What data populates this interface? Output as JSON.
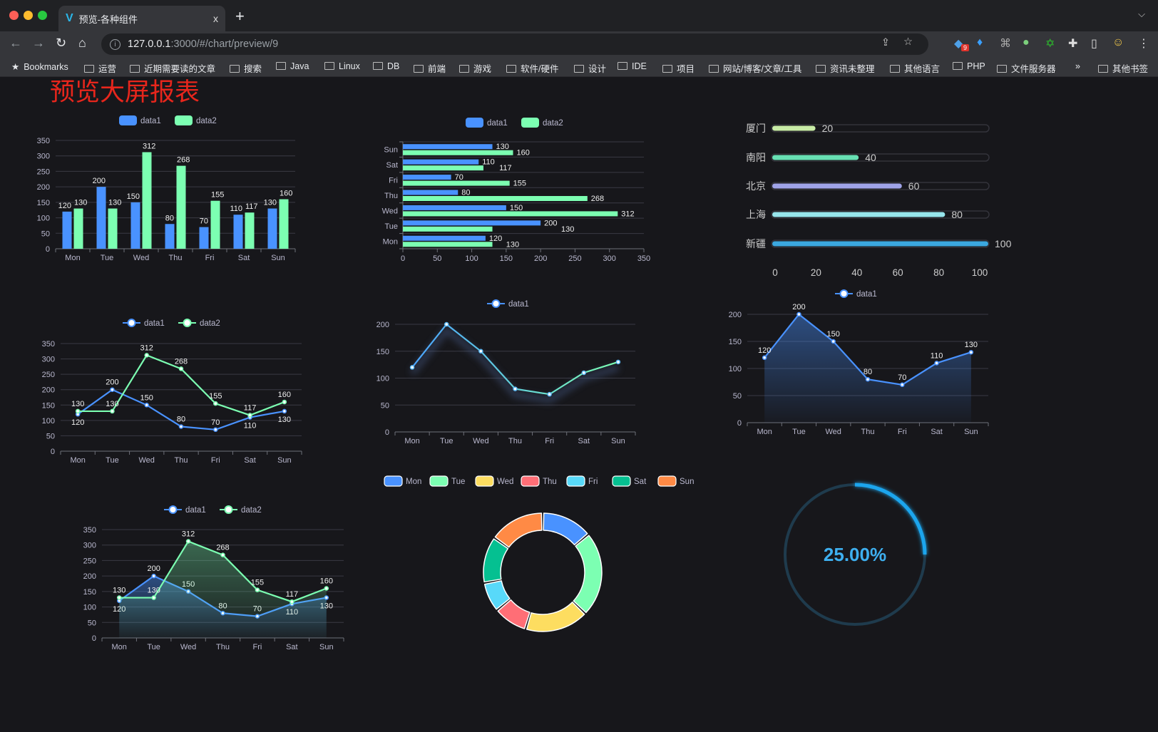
{
  "browser": {
    "tab_title": "预览-各种组件",
    "tab_close": "x",
    "new_tab": "+",
    "url_host": "127.0.0.1",
    "url_path": ":3000/#/chart/preview/9",
    "extension_badge": "9",
    "bookmarks": [
      "Bookmarks",
      "运营",
      "近期需要读的文章",
      "搜索",
      "Java",
      "Linux",
      "DB",
      "前端",
      "游戏",
      "软件/硬件",
      "设计",
      "IDE",
      "项目",
      "网站/博客/文章/工具",
      "资讯未整理",
      "其他语言",
      "PHP",
      "文件服务器"
    ],
    "more_bookmarks": "»",
    "other_bookmarks": "其他书签"
  },
  "page": {
    "title": "预览大屏报表"
  },
  "colors": {
    "data1": "#4992ff",
    "data2": "#7cffb2",
    "title": "#e8261c",
    "background": "#17171b"
  },
  "chart_data": [
    {
      "type": "bar",
      "categories": [
        "Mon",
        "Tue",
        "Wed",
        "Thu",
        "Fri",
        "Sat",
        "Sun"
      ],
      "yticks": [
        0,
        50,
        100,
        150,
        200,
        250,
        300,
        350
      ],
      "ylim": [
        0,
        350
      ],
      "legend": "top",
      "grid": true,
      "series": [
        {
          "name": "data1",
          "color": "#4992ff",
          "values": [
            120,
            200,
            150,
            80,
            70,
            110,
            130
          ]
        },
        {
          "name": "data2",
          "color": "#7cffb2",
          "values": [
            130,
            130,
            312,
            268,
            155,
            117,
            160
          ]
        }
      ]
    },
    {
      "type": "bar",
      "orientation": "horizontal",
      "categories": [
        "Mon",
        "Tue",
        "Wed",
        "Thu",
        "Fri",
        "Sat",
        "Sun"
      ],
      "xticks": [
        0,
        50,
        100,
        150,
        200,
        250,
        300,
        350
      ],
      "xlim": [
        0,
        350
      ],
      "legend": "top",
      "grid": true,
      "series": [
        {
          "name": "data1",
          "color": "#4992ff",
          "values": [
            120,
            200,
            150,
            80,
            70,
            110,
            130
          ]
        },
        {
          "name": "data2",
          "color": "#7cffb2",
          "values": [
            130,
            130,
            312,
            268,
            155,
            117,
            160
          ]
        }
      ]
    },
    {
      "type": "bar",
      "orientation": "horizontal",
      "style": "progress",
      "categories": [
        "厦门",
        "南阳",
        "北京",
        "上海",
        "新疆"
      ],
      "values": [
        20,
        40,
        60,
        80,
        100
      ],
      "colors": [
        "#c8eca6",
        "#67e0b3",
        "#9fa3e8",
        "#97e6ec",
        "#3ba8e0"
      ],
      "xticks": [
        0,
        20,
        40,
        60,
        80,
        100
      ],
      "xlim": [
        0,
        100
      ]
    },
    {
      "type": "line",
      "categories": [
        "Mon",
        "Tue",
        "Wed",
        "Thu",
        "Fri",
        "Sat",
        "Sun"
      ],
      "yticks": [
        0,
        50,
        100,
        150,
        200,
        250,
        300,
        350
      ],
      "ylim": [
        0,
        350
      ],
      "legend": "top",
      "grid": true,
      "series": [
        {
          "name": "data1",
          "color": "#4992ff",
          "values": [
            120,
            200,
            150,
            80,
            70,
            110,
            130
          ]
        },
        {
          "name": "data2",
          "color": "#7cffb2",
          "values": [
            130,
            130,
            312,
            268,
            155,
            117,
            160
          ]
        }
      ]
    },
    {
      "type": "line",
      "categories": [
        "Mon",
        "Tue",
        "Wed",
        "Thu",
        "Fri",
        "Sat",
        "Sun"
      ],
      "yticks": [
        0,
        50,
        100,
        150,
        200
      ],
      "ylim": [
        0,
        200
      ],
      "legend": "top",
      "grid": true,
      "gradient_line": [
        "#4aa3ff",
        "#7cffb2"
      ],
      "series": [
        {
          "name": "data1",
          "color": "#4992ff",
          "values": [
            120,
            200,
            150,
            80,
            70,
            110,
            130
          ]
        }
      ]
    },
    {
      "type": "area",
      "categories": [
        "Mon",
        "Tue",
        "Wed",
        "Thu",
        "Fri",
        "Sat",
        "Sun"
      ],
      "yticks": [
        0,
        50,
        100,
        150,
        200
      ],
      "ylim": [
        0,
        200
      ],
      "legend": "top",
      "grid": true,
      "series": [
        {
          "name": "data1",
          "color": "#4992ff",
          "values": [
            120,
            200,
            150,
            80,
            70,
            110,
            130
          ]
        }
      ]
    },
    {
      "type": "pie",
      "style": "donut",
      "legend": "top",
      "categories": [
        "Mon",
        "Tue",
        "Wed",
        "Thu",
        "Fri",
        "Sat",
        "Sun"
      ],
      "values": [
        120,
        200,
        150,
        80,
        70,
        110,
        130
      ],
      "colors": [
        "#4992ff",
        "#7cffb2",
        "#fddd60",
        "#ff6e76",
        "#58d9f9",
        "#05c091",
        "#ff8a45"
      ]
    },
    {
      "type": "area",
      "categories": [
        "Mon",
        "Tue",
        "Wed",
        "Thu",
        "Fri",
        "Sat",
        "Sun"
      ],
      "yticks": [
        0,
        50,
        100,
        150,
        200,
        250,
        300,
        350
      ],
      "ylim": [
        0,
        350
      ],
      "legend": "top",
      "grid": true,
      "series": [
        {
          "name": "data1",
          "color": "#4992ff",
          "values": [
            120,
            200,
            150,
            80,
            70,
            110,
            130
          ]
        },
        {
          "name": "data2",
          "color": "#7cffb2",
          "values": [
            130,
            130,
            312,
            268,
            155,
            117,
            160
          ]
        }
      ]
    },
    {
      "type": "gauge",
      "value": 0.25,
      "label": "25.00%",
      "color": "#1ba5ed",
      "track_color": "#1f3b4d"
    }
  ]
}
